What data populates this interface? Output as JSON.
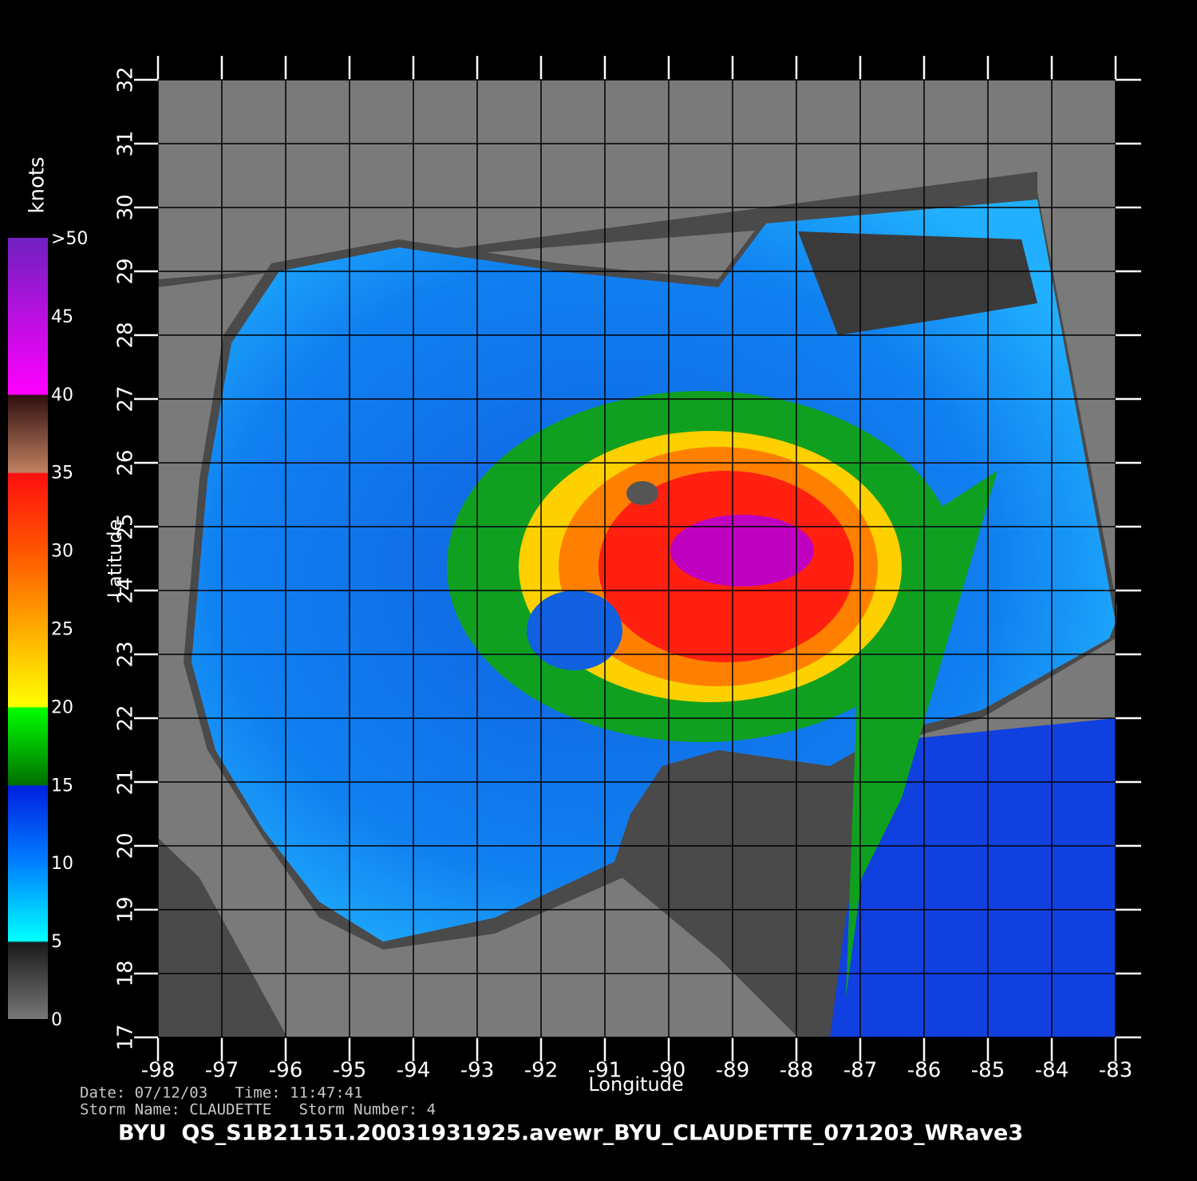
{
  "chart_data": {
    "type": "map",
    "xlabel": "Longitude",
    "ylabel": "Latitude",
    "xlim": [
      -98,
      -83
    ],
    "ylim": [
      17,
      32
    ],
    "xticks": [
      -98,
      -97,
      -96,
      -95,
      -94,
      -93,
      -92,
      -91,
      -90,
      -89,
      -88,
      -87,
      -86,
      -85,
      -84,
      -83
    ],
    "yticks": [
      17,
      18,
      19,
      20,
      21,
      22,
      23,
      24,
      25,
      26,
      27,
      28,
      29,
      30,
      31,
      32
    ],
    "grid": true,
    "colorbar": {
      "title": "knots",
      "lim": [
        0,
        50
      ],
      "ticks": [
        0,
        5,
        10,
        15,
        20,
        25,
        30,
        35,
        40,
        45,
        {
          "value": 50,
          "label": ">50"
        }
      ],
      "stops": [
        {
          "value": 0,
          "color": "#777777"
        },
        {
          "value": 4.9,
          "color": "#1a1a1a"
        },
        {
          "value": 5,
          "color": "#00ffff"
        },
        {
          "value": 10,
          "color": "#0080ff"
        },
        {
          "value": 14.9,
          "color": "#0020e0"
        },
        {
          "value": 15,
          "color": "#007000"
        },
        {
          "value": 19.9,
          "color": "#00ff00"
        },
        {
          "value": 20,
          "color": "#ffff00"
        },
        {
          "value": 25,
          "color": "#ffaa00"
        },
        {
          "value": 30,
          "color": "#ff5500"
        },
        {
          "value": 34.9,
          "color": "#ff1010"
        },
        {
          "value": 35,
          "color": "#c08060"
        },
        {
          "value": 39.9,
          "color": "#301010"
        },
        {
          "value": 40,
          "color": "#ff00ff"
        },
        {
          "value": 50,
          "color": "#7020c0"
        }
      ]
    },
    "date_line": "Date: 07/12/03   Time: 11:47:41",
    "storm_line": "Storm Name: CLAUDETTE   Storm Number: 4",
    "title": "BYU  QS_S1B21151.20031931925.avewr_BYU_CLAUDETTE_071203_WRave3"
  }
}
